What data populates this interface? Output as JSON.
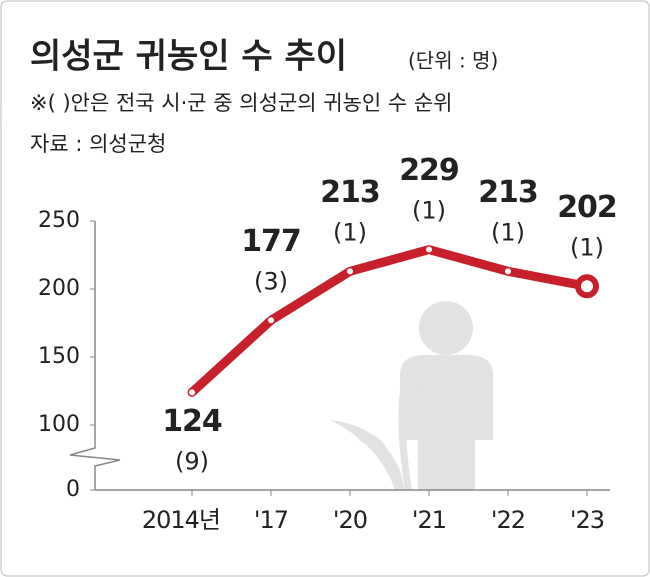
{
  "chart_data": {
    "type": "line",
    "title": "의성군 귀농인 수 추이",
    "unit": "(단위 : 명)",
    "note": "※( )안은 전국 시·군 중 의성군의 귀농인 수 순위",
    "source": "자료 : 의성군청",
    "categories": [
      "2014년",
      "'17",
      "'20",
      "'21",
      "'22",
      "'23"
    ],
    "values": [
      124,
      177,
      213,
      229,
      213,
      202
    ],
    "rank_labels": [
      "(9)",
      "(3)",
      "(1)",
      "(1)",
      "(1)",
      "(1)"
    ],
    "color": "#c8202a",
    "ylim": [
      0,
      250
    ],
    "yticks": [
      0,
      100,
      150,
      200,
      250
    ],
    "axis_break": [
      0,
      100
    ],
    "grid": false
  }
}
